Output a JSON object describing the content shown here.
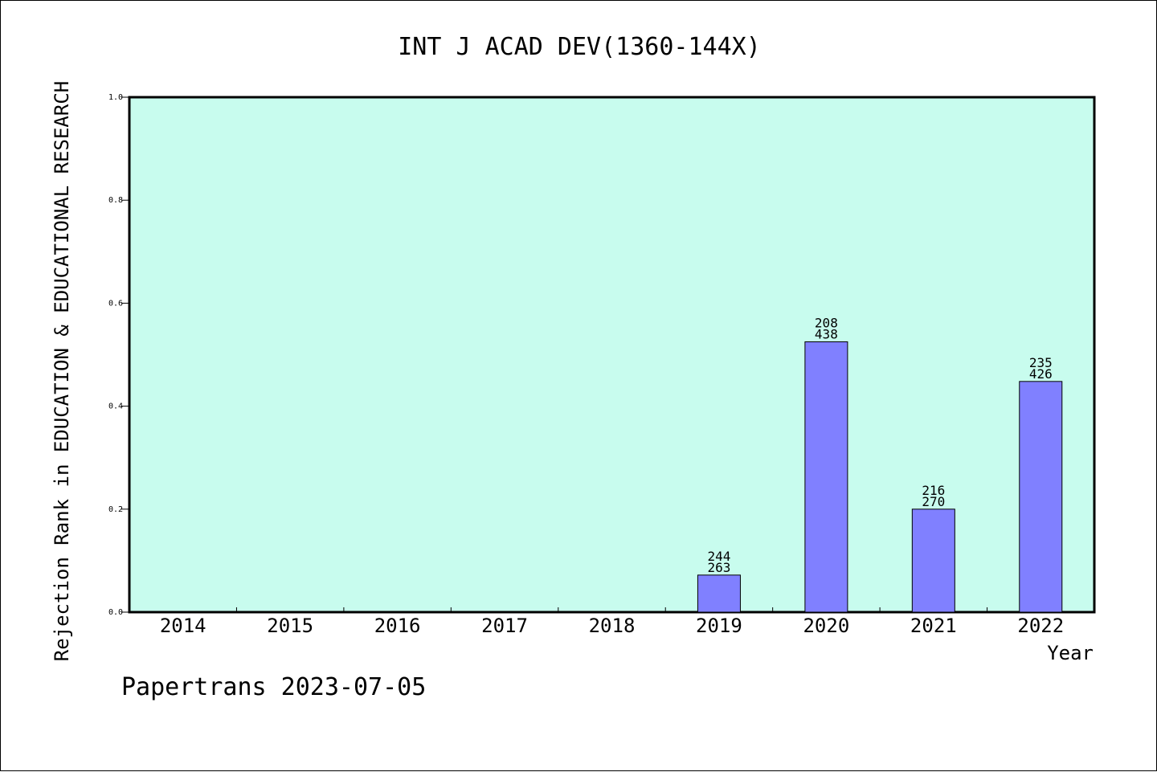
{
  "chart_data": {
    "type": "bar",
    "title": "INT J ACAD DEV(1360-144X)",
    "xlabel": "Year",
    "ylabel": "Rejection Rank in EDUCATION & EDUCATIONAL RESEARCH",
    "categories": [
      "2014",
      "2015",
      "2016",
      "2017",
      "2018",
      "2019",
      "2020",
      "2021",
      "2022"
    ],
    "values": [
      null,
      null,
      null,
      null,
      null,
      0.072,
      0.525,
      0.2,
      0.448
    ],
    "bar_labels": [
      null,
      null,
      null,
      null,
      null,
      [
        "244",
        "263"
      ],
      [
        "208",
        "438"
      ],
      [
        "216",
        "270"
      ],
      [
        "235",
        "426"
      ]
    ],
    "ylim": [
      0,
      1.0
    ],
    "yticks": [
      "0.0",
      "0.2",
      "0.4",
      "0.6",
      "0.8",
      "1.0"
    ],
    "grid": false,
    "colors": {
      "plot_background": "#c8fcee",
      "bar_fill": "#8080ff",
      "bar_stroke": "#000000"
    }
  },
  "footer": {
    "watermark": "Papertrans 2023-07-05"
  }
}
